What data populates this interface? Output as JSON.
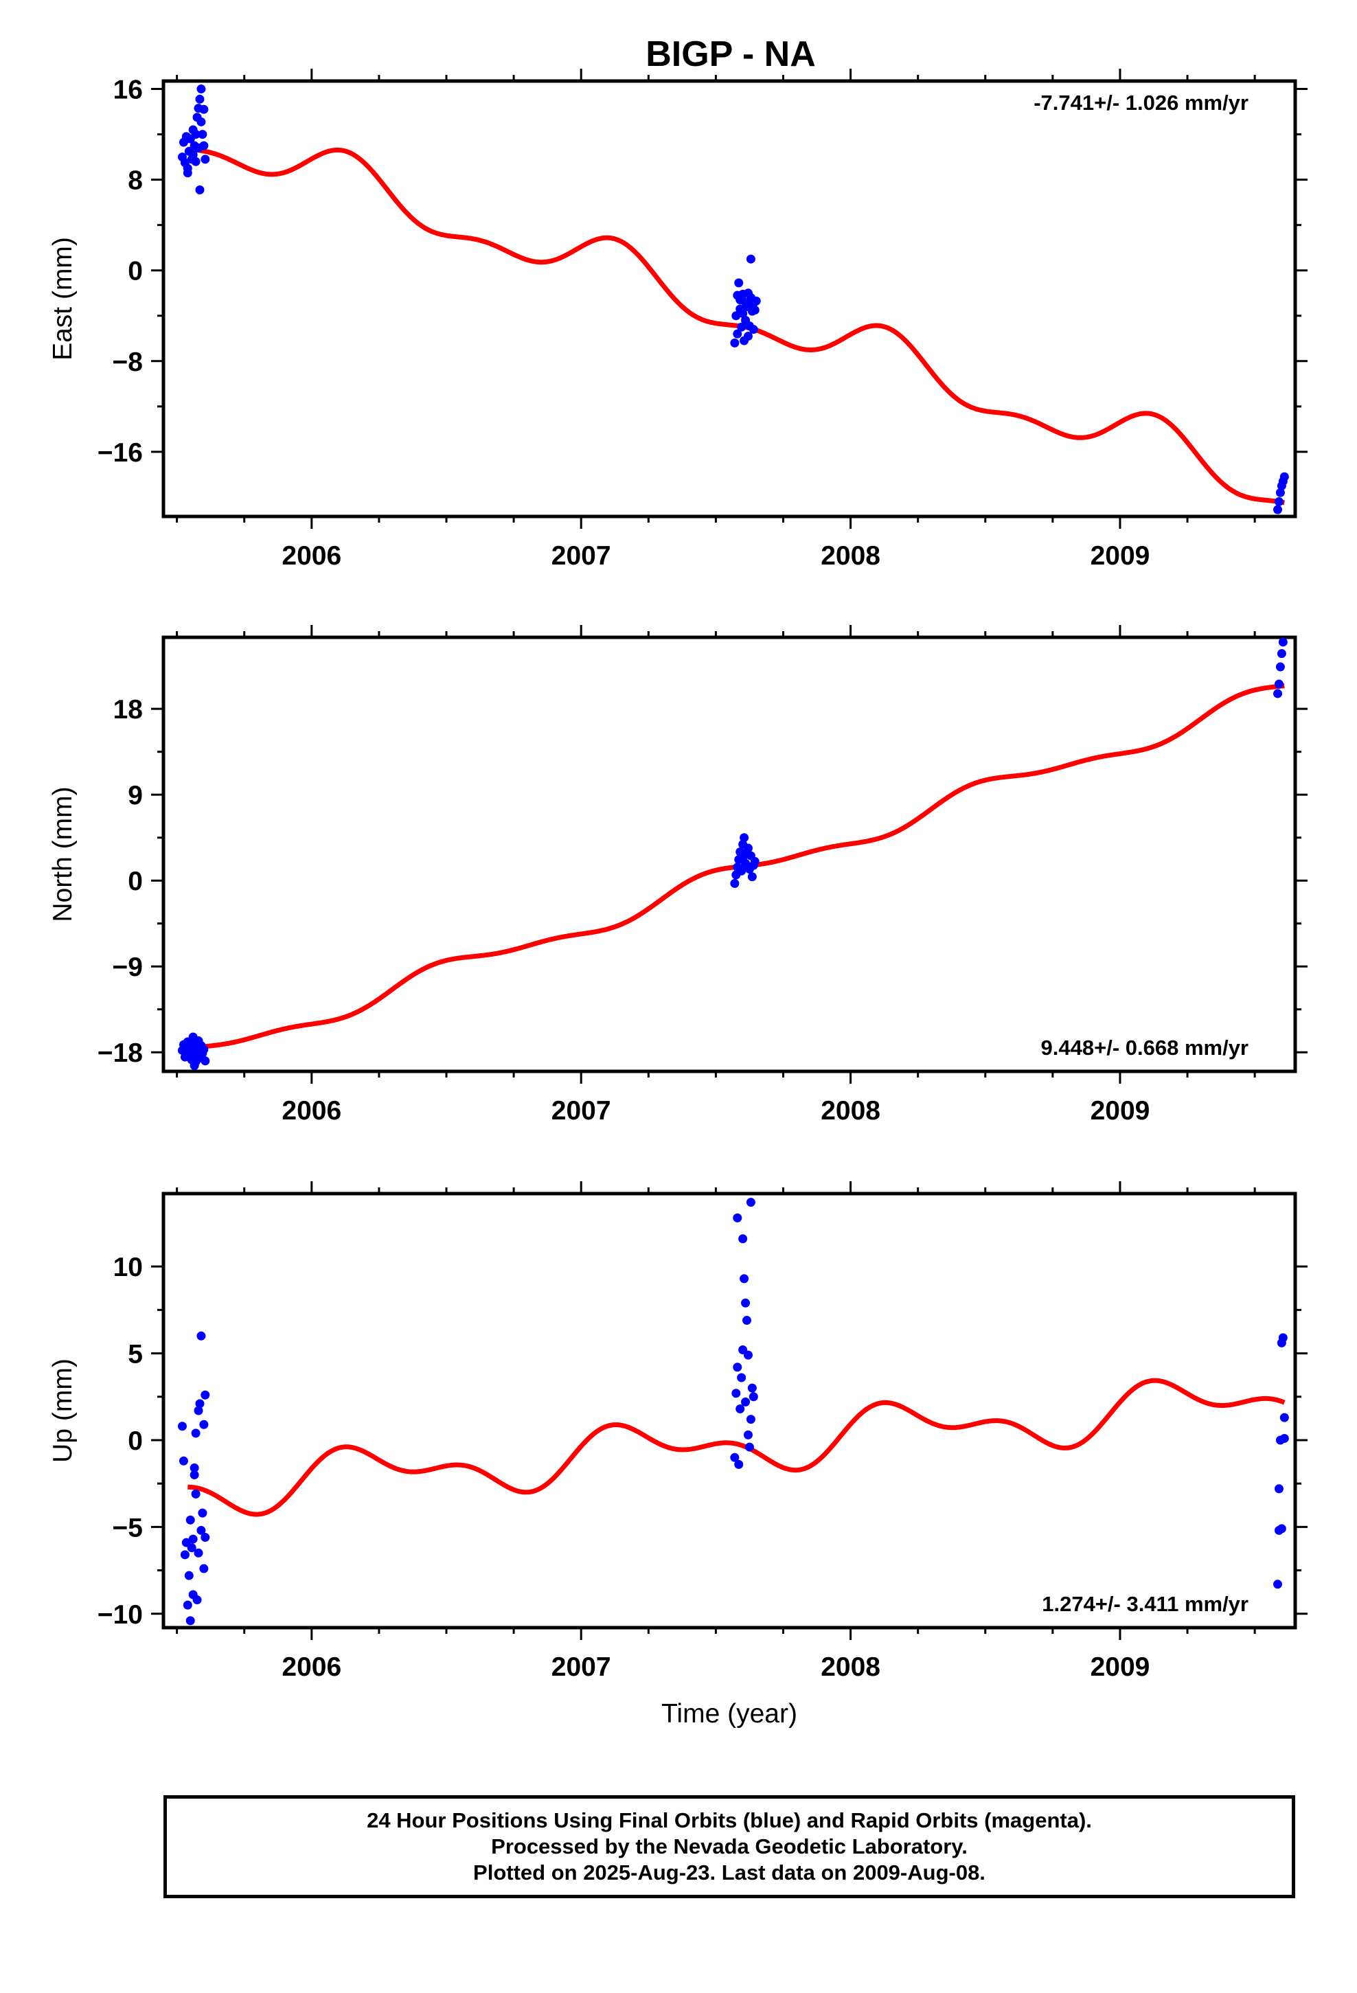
{
  "title": "BIGP - NA",
  "colors": {
    "data": "#0000ff",
    "model": "#ff0000",
    "frame": "#000000"
  },
  "footer": {
    "line1": "24 Hour Positions Using Final Orbits (blue) and Rapid Orbits (magenta).",
    "line2": "Processed by the Nevada Geodetic Laboratory.",
    "line3": "Plotted on 2025-Aug-23. Last data on 2009-Aug-08."
  },
  "chart_data": [
    {
      "type": "scatter",
      "ylabel": "East (mm)",
      "xlabel": "",
      "rate": "-7.741+/- 1.026 mm/yr",
      "rate_position": "top-right",
      "xlim": [
        2005.45,
        2009.65
      ],
      "ylim": [
        -21.7,
        16.7
      ],
      "xticks": [
        2006,
        2007,
        2008,
        2009
      ],
      "yticks": [
        16,
        8,
        0,
        -8,
        -16
      ],
      "ytick_labels": [
        "16",
        "8",
        "0",
        "−8",
        "−16"
      ],
      "trend": {
        "start": [
          2005.54,
          10.7
        ],
        "slope": -7.741,
        "seasonal": [
          {
            "amp": 2.0,
            "phase": 4.2
          },
          {
            "amp": 1.0,
            "phase": 0.4
          }
        ]
      },
      "observations": [
        [
          2005.52,
          10.0
        ],
        [
          2005.525,
          11.3
        ],
        [
          2005.53,
          9.5
        ],
        [
          2005.535,
          11.8
        ],
        [
          2005.54,
          9.0
        ],
        [
          2005.545,
          10.5
        ],
        [
          2005.55,
          11.6
        ],
        [
          2005.555,
          9.8
        ],
        [
          2005.56,
          12.4
        ],
        [
          2005.56,
          10.2
        ],
        [
          2005.565,
          11.0
        ],
        [
          2005.57,
          9.6
        ],
        [
          2005.57,
          12.0
        ],
        [
          2005.575,
          13.5
        ],
        [
          2005.58,
          10.8
        ],
        [
          2005.58,
          14.3
        ],
        [
          2005.585,
          15.1
        ],
        [
          2005.59,
          16.0
        ],
        [
          2005.59,
          13.1
        ],
        [
          2005.595,
          12.0
        ],
        [
          2005.6,
          14.2
        ],
        [
          2005.6,
          11.0
        ],
        [
          2005.605,
          9.8
        ],
        [
          2005.585,
          7.1
        ],
        [
          2005.54,
          8.6
        ],
        [
          2007.57,
          -6.4
        ],
        [
          2007.575,
          -4.0
        ],
        [
          2007.58,
          -2.2
        ],
        [
          2007.58,
          -5.6
        ],
        [
          2007.585,
          -1.1
        ],
        [
          2007.59,
          -3.4
        ],
        [
          2007.59,
          -2.6
        ],
        [
          2007.595,
          -5.0
        ],
        [
          2007.6,
          -2.1
        ],
        [
          2007.6,
          -3.8
        ],
        [
          2007.605,
          -6.2
        ],
        [
          2007.61,
          -4.4
        ],
        [
          2007.61,
          -2.8
        ],
        [
          2007.615,
          -3.2
        ],
        [
          2007.62,
          -5.8
        ],
        [
          2007.62,
          -2.0
        ],
        [
          2007.625,
          -4.9
        ],
        [
          2007.63,
          -2.4
        ],
        [
          2007.63,
          1.0
        ],
        [
          2007.635,
          -3.6
        ],
        [
          2007.64,
          -5.2
        ],
        [
          2007.64,
          -2.9
        ],
        [
          2007.645,
          -3.5
        ],
        [
          2007.65,
          -2.7
        ],
        [
          2009.585,
          -21.1
        ],
        [
          2009.59,
          -20.4
        ],
        [
          2009.595,
          -19.6
        ],
        [
          2009.6,
          -19.0
        ],
        [
          2009.605,
          -18.6
        ],
        [
          2009.61,
          -18.2
        ]
      ]
    },
    {
      "type": "scatter",
      "ylabel": "North (mm)",
      "xlabel": "",
      "rate": "9.448+/- 0.668 mm/yr",
      "rate_position": "bottom-right",
      "xlim": [
        2005.45,
        2009.65
      ],
      "ylim": [
        -20.0,
        25.5
      ],
      "xticks": [
        2006,
        2007,
        2008,
        2009
      ],
      "yticks": [
        18,
        9,
        0,
        -9,
        -18
      ],
      "ytick_labels": [
        "18",
        "9",
        "0",
        "−9",
        "−18"
      ],
      "trend": {
        "start": [
          2005.54,
          -17.6
        ],
        "slope": 9.448,
        "seasonal": [
          {
            "amp": 1.0,
            "phase": 1.6
          },
          {
            "amp": 0.4,
            "phase": 3.0
          }
        ]
      },
      "observations": [
        [
          2005.52,
          -17.8
        ],
        [
          2005.525,
          -17.2
        ],
        [
          2005.53,
          -18.5
        ],
        [
          2005.535,
          -17.6
        ],
        [
          2005.54,
          -16.9
        ],
        [
          2005.545,
          -18.0
        ],
        [
          2005.55,
          -17.4
        ],
        [
          2005.555,
          -18.8
        ],
        [
          2005.56,
          -16.4
        ],
        [
          2005.56,
          -17.9
        ],
        [
          2005.565,
          -17.0
        ],
        [
          2005.57,
          -18.3
        ],
        [
          2005.57,
          -19.0
        ],
        [
          2005.575,
          -17.5
        ],
        [
          2005.58,
          -16.8
        ],
        [
          2005.585,
          -18.6
        ],
        [
          2005.59,
          -17.3
        ],
        [
          2005.595,
          -18.1
        ],
        [
          2005.6,
          -17.7
        ],
        [
          2005.605,
          -18.9
        ],
        [
          2005.565,
          -19.4
        ],
        [
          2005.55,
          -17.2
        ],
        [
          2007.57,
          -0.3
        ],
        [
          2007.575,
          0.6
        ],
        [
          2007.58,
          1.4
        ],
        [
          2007.585,
          2.2
        ],
        [
          2007.59,
          3.0
        ],
        [
          2007.595,
          1.0
        ],
        [
          2007.6,
          3.8
        ],
        [
          2007.6,
          2.4
        ],
        [
          2007.605,
          4.5
        ],
        [
          2007.61,
          1.8
        ],
        [
          2007.615,
          2.9
        ],
        [
          2007.62,
          3.4
        ],
        [
          2007.625,
          1.2
        ],
        [
          2007.63,
          2.6
        ],
        [
          2007.635,
          0.4
        ],
        [
          2007.64,
          1.6
        ],
        [
          2007.645,
          2.0
        ],
        [
          2009.585,
          19.6
        ],
        [
          2009.59,
          20.6
        ],
        [
          2009.595,
          22.4
        ],
        [
          2009.6,
          23.8
        ],
        [
          2009.605,
          25.0
        ]
      ]
    },
    {
      "type": "scatter",
      "ylabel": "Up (mm)",
      "xlabel": "Time (year)",
      "rate": "1.274+/- 3.411 mm/yr",
      "rate_position": "bottom-right",
      "xlim": [
        2005.45,
        2009.65
      ],
      "ylim": [
        -10.8,
        14.2
      ],
      "xticks": [
        2006,
        2007,
        2008,
        2009
      ],
      "yticks": [
        10,
        5,
        0,
        -5,
        -10
      ],
      "ytick_labels": [
        "10",
        "5",
        "0",
        "−5",
        "−10"
      ],
      "trend": {
        "start": [
          2005.54,
          -2.7
        ],
        "slope": 1.274,
        "seasonal": [
          {
            "amp": 1.2,
            "phase": 3.6
          },
          {
            "amp": 0.8,
            "phase": 1.0
          }
        ]
      },
      "observations": [
        [
          2005.52,
          0.8
        ],
        [
          2005.525,
          -1.2
        ],
        [
          2005.53,
          -6.6
        ],
        [
          2005.535,
          -5.9
        ],
        [
          2005.54,
          -9.5
        ],
        [
          2005.545,
          -7.8
        ],
        [
          2005.55,
          -10.4
        ],
        [
          2005.555,
          -6.2
        ],
        [
          2005.56,
          -8.9
        ],
        [
          2005.56,
          -5.7
        ],
        [
          2005.565,
          -1.6
        ],
        [
          2005.57,
          0.4
        ],
        [
          2005.57,
          -3.1
        ],
        [
          2005.575,
          -9.2
        ],
        [
          2005.58,
          1.7
        ],
        [
          2005.58,
          -6.5
        ],
        [
          2005.585,
          2.1
        ],
        [
          2005.59,
          -5.2
        ],
        [
          2005.59,
          6.0
        ],
        [
          2005.595,
          -4.2
        ],
        [
          2005.6,
          0.9
        ],
        [
          2005.6,
          -7.4
        ],
        [
          2005.605,
          2.6
        ],
        [
          2005.605,
          -5.6
        ],
        [
          2005.55,
          -4.6
        ],
        [
          2005.565,
          -2.0
        ],
        [
          2007.57,
          -1.0
        ],
        [
          2007.575,
          2.7
        ],
        [
          2007.58,
          4.2
        ],
        [
          2007.58,
          12.8
        ],
        [
          2007.585,
          -1.4
        ],
        [
          2007.59,
          1.8
        ],
        [
          2007.595,
          3.6
        ],
        [
          2007.6,
          11.6
        ],
        [
          2007.6,
          5.2
        ],
        [
          2007.605,
          9.3
        ],
        [
          2007.61,
          2.2
        ],
        [
          2007.61,
          7.9
        ],
        [
          2007.615,
          6.9
        ],
        [
          2007.62,
          0.3
        ],
        [
          2007.62,
          4.9
        ],
        [
          2007.625,
          -0.4
        ],
        [
          2007.63,
          13.7
        ],
        [
          2007.63,
          1.2
        ],
        [
          2007.635,
          3.0
        ],
        [
          2007.64,
          2.5
        ],
        [
          2009.585,
          -8.3
        ],
        [
          2009.59,
          -2.8
        ],
        [
          2009.59,
          -5.2
        ],
        [
          2009.595,
          0.0
        ],
        [
          2009.6,
          5.6
        ],
        [
          2009.6,
          -5.1
        ],
        [
          2009.605,
          5.9
        ],
        [
          2009.61,
          1.3
        ],
        [
          2009.61,
          0.1
        ]
      ]
    }
  ]
}
